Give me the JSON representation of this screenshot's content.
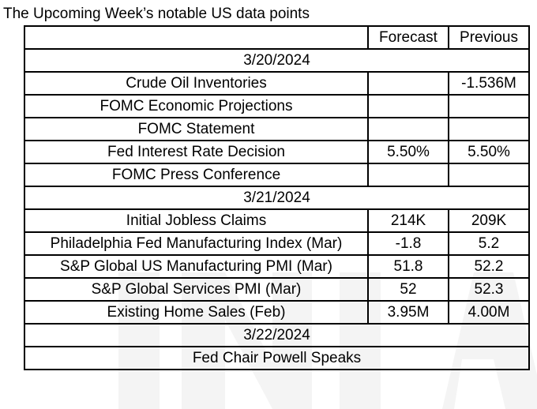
{
  "title": "The Upcoming Week’s notable US data points",
  "headers": {
    "event": "",
    "forecast": "Forecast",
    "previous": "Previous"
  },
  "sections": [
    {
      "date": "3/20/2024",
      "rows": [
        {
          "event": "Crude Oil Inventories",
          "forecast": "",
          "previous": "-1.536M"
        },
        {
          "event": "FOMC Economic Projections",
          "forecast": "",
          "previous": ""
        },
        {
          "event": "FOMC Statement",
          "forecast": "",
          "previous": ""
        },
        {
          "event": "Fed Interest Rate Decision",
          "forecast": "5.50%",
          "previous": "5.50%"
        },
        {
          "event": "FOMC Press Conference",
          "forecast": "",
          "previous": ""
        }
      ]
    },
    {
      "date": "3/21/2024",
      "rows": [
        {
          "event": "Initial Jobless Claims",
          "forecast": "214K",
          "previous": "209K"
        },
        {
          "event": "Philadelphia Fed Manufacturing Index (Mar)",
          "forecast": "-1.8",
          "previous": "5.2"
        },
        {
          "event": "S&P Global US Manufacturing PMI (Mar)",
          "forecast": "51.8",
          "previous": "52.2"
        },
        {
          "event": "S&P Global Services PMI (Mar)",
          "forecast": "52",
          "previous": "52.3"
        },
        {
          "event": "Existing Home Sales (Feb)",
          "forecast": "3.95M",
          "previous": "4.00M"
        }
      ]
    },
    {
      "date": "3/22/2024",
      "rows": [
        {
          "event": "Fed Chair Powell Speaks",
          "merged": true
        }
      ]
    }
  ]
}
